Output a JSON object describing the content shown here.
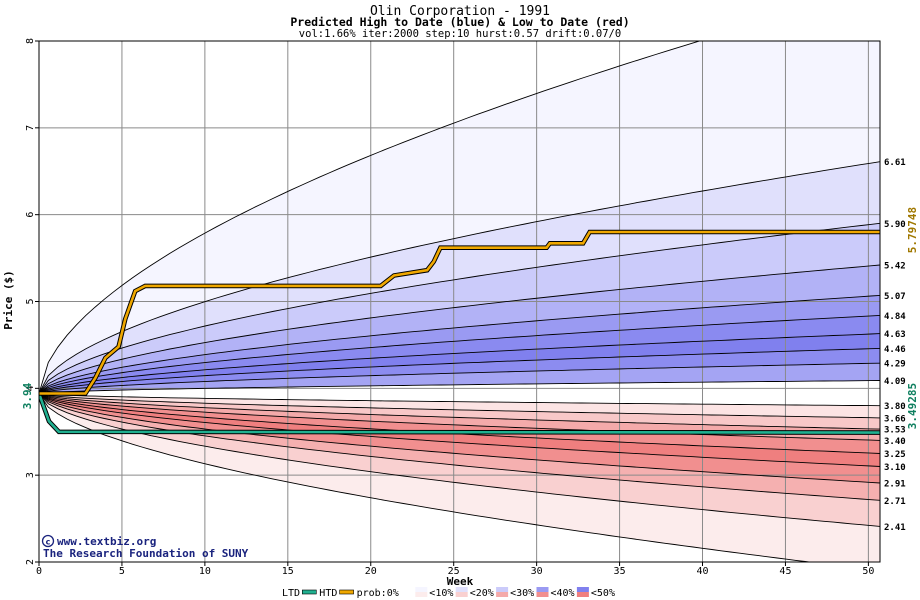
{
  "chart_data": {
    "type": "area",
    "title": "Olin Corporation - 1991",
    "subtitle": "Predicted High to Date (blue) &  Low to Date (red)",
    "params": "vol:1.66% iter:2000 step:10 hurst:0.57 drift:0.07/0",
    "xlabel": "Week",
    "ylabel": "Price ($)",
    "xlim": [
      0,
      50.7
    ],
    "ylim": [
      2,
      8
    ],
    "x_ticks": [
      0,
      5,
      10,
      15,
      20,
      25,
      30,
      35,
      40,
      45,
      50
    ],
    "y_ticks": [
      2,
      3,
      4,
      5,
      6,
      7,
      8
    ],
    "start_price": "3.94",
    "start_value": 3.94,
    "grid": true,
    "high_percentile_curves": [
      {
        "label": "",
        "end": 8.6
      },
      {
        "label": "6.61",
        "end": 6.61
      },
      {
        "label": "5.90",
        "end": 5.9
      },
      {
        "label": "5.42",
        "end": 5.42
      },
      {
        "label": "5.07",
        "end": 5.07
      },
      {
        "label": "4.84",
        "end": 4.84
      },
      {
        "label": "4.63",
        "end": 4.63
      },
      {
        "label": "4.46",
        "end": 4.46
      },
      {
        "label": "4.29",
        "end": 4.29
      },
      {
        "label": "4.09",
        "end": 4.09
      }
    ],
    "low_percentile_curves": [
      {
        "label": "3.80",
        "end": 3.8
      },
      {
        "label": "3.66",
        "end": 3.66
      },
      {
        "label": "3.53",
        "end": 3.53
      },
      {
        "label": "3.40",
        "end": 3.4
      },
      {
        "label": "3.25",
        "end": 3.25
      },
      {
        "label": "3.10",
        "end": 3.1
      },
      {
        "label": "2.91",
        "end": 2.91
      },
      {
        "label": "2.71",
        "end": 2.71
      },
      {
        "label": "2.41",
        "end": 2.41
      },
      {
        "label": "",
        "end": 1.9
      }
    ],
    "high_to_date": {
      "name": "HTD",
      "final_label": "5.79748",
      "x": [
        0,
        2.8,
        3.4,
        4.0,
        4.8,
        5.2,
        5.8,
        6.4,
        20.6,
        21.4,
        23.4,
        23.8,
        24.2,
        30.6,
        30.8,
        32.8,
        33.2,
        50.7
      ],
      "y": [
        3.94,
        3.94,
        4.12,
        4.35,
        4.48,
        4.8,
        5.12,
        5.18,
        5.18,
        5.3,
        5.36,
        5.46,
        5.62,
        5.62,
        5.67,
        5.67,
        5.8,
        5.8
      ]
    },
    "low_to_date": {
      "name": "LTD",
      "final_label": "3.49285",
      "x": [
        0,
        0.6,
        1.2,
        50.7
      ],
      "y": [
        3.94,
        3.62,
        3.5,
        3.49
      ]
    },
    "legend": {
      "placement": "bottom",
      "items": [
        "LTD",
        "HTD",
        "prob:0%",
        "<10%",
        "<20%",
        "<30%",
        "<40%",
        "<50%"
      ]
    },
    "colors": {
      "htd": "#f0a800",
      "ltd": "#20b090",
      "blue_bands": [
        "#f5f5ff",
        "#e0e0fc",
        "#cbcbfa",
        "#b2b2f6",
        "#9a9af2",
        "#8a8af0",
        "#8080ee",
        "#8c8cf0",
        "#a4a4f3"
      ],
      "red_bands": [
        "#fce4e4",
        "#f8c8c8",
        "#f4aaaa",
        "#f18f8f",
        "#ef7f7f",
        "#f18f8f",
        "#f5b0b0",
        "#f9d0d0",
        "#fcecec"
      ]
    },
    "credit_line1": "www.textbiz.org",
    "credit_line2": "The Research Foundation of SUNY"
  }
}
